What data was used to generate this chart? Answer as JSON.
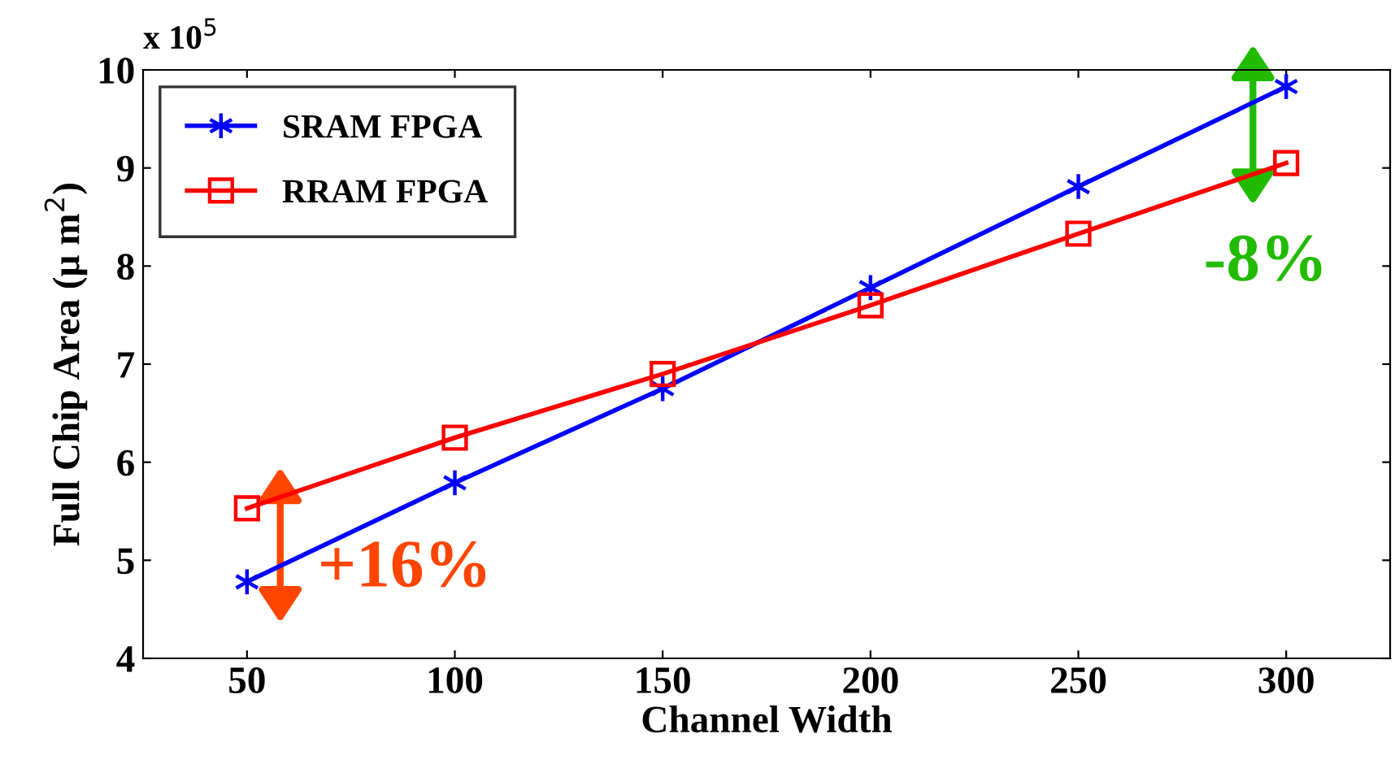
{
  "chart_data": {
    "type": "line",
    "xlabel": "Channel Width",
    "ylabel": "Full Chip Area (μ m$^{2}$)",
    "x": [
      50,
      100,
      150,
      200,
      250,
      300
    ],
    "series": [
      {
        "name": "SRAM FPGA",
        "color": "#0000ff",
        "marker": "cross",
        "values": [
          4.78,
          5.79,
          6.75,
          7.78,
          8.81,
          9.83
        ]
      },
      {
        "name": "RRAM FPGA",
        "color": "#ff0000",
        "marker": "square",
        "values": [
          5.53,
          6.25,
          6.9,
          7.6,
          8.33,
          9.05
        ]
      }
    ],
    "xlim": [
      25,
      325
    ],
    "xticks": [
      50,
      100,
      150,
      200,
      250,
      300
    ],
    "ylim": [
      4,
      10
    ],
    "yticks": [
      4,
      5,
      6,
      7,
      8,
      9,
      10
    ],
    "annotations": [
      "x 10$^{5}$",
      "+16%",
      "-8%"
    ],
    "legend": "top left",
    "line_style": "solid"
  }
}
